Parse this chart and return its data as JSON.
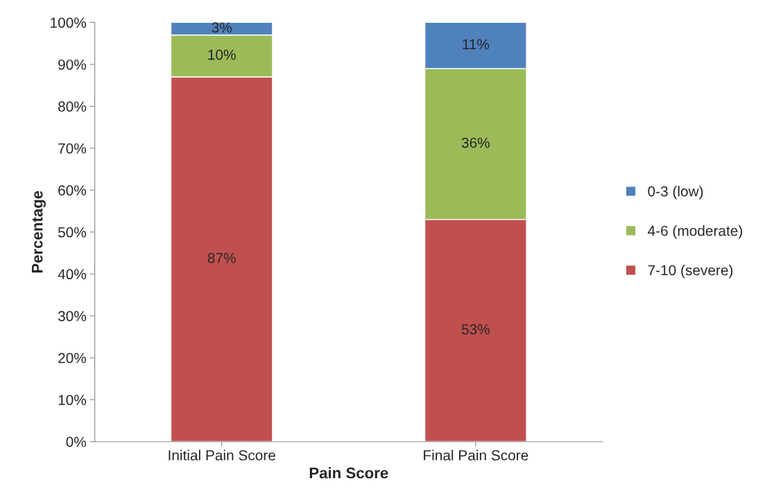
{
  "chart_data": {
    "type": "bar",
    "stacked": true,
    "xlabel": "Pain Score",
    "ylabel": "Percentage",
    "categories": [
      "Initial Pain Score",
      "Final Pain Score"
    ],
    "series": [
      {
        "name": "7-10 (severe)",
        "color": "#c0504d",
        "values": [
          87,
          53
        ],
        "value_labels": [
          "87%",
          "53%"
        ]
      },
      {
        "name": "4-6 (moderate)",
        "color": "#9bbb59",
        "values": [
          10,
          36
        ],
        "value_labels": [
          "10%",
          "36%"
        ]
      },
      {
        "name": "0-3 (low)",
        "color": "#4f81bd",
        "values": [
          3,
          11
        ],
        "value_labels": [
          "3%",
          "11%"
        ]
      }
    ],
    "ylim": [
      0,
      100
    ],
    "yticks": [
      {
        "value": 0,
        "label": "0%"
      },
      {
        "value": 10,
        "label": "10%"
      },
      {
        "value": 20,
        "label": "20%"
      },
      {
        "value": 30,
        "label": "30%"
      },
      {
        "value": 40,
        "label": "40%"
      },
      {
        "value": 50,
        "label": "50%"
      },
      {
        "value": 60,
        "label": "60%"
      },
      {
        "value": 70,
        "label": "70%"
      },
      {
        "value": 80,
        "label": "80%"
      },
      {
        "value": 90,
        "label": "90%"
      },
      {
        "value": 100,
        "label": "100%"
      }
    ],
    "grid": false,
    "legend": "right"
  }
}
